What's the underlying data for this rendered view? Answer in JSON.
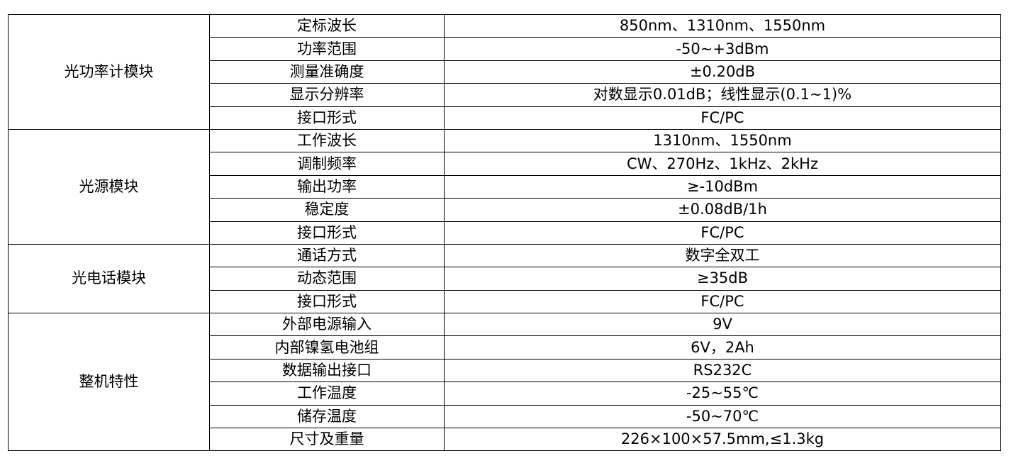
{
  "spec_table": {
    "groups": [
      {
        "module": "光功率计模块",
        "rows": [
          {
            "param": "定标波长",
            "value": "850nm、1310nm、1550nm"
          },
          {
            "param": "功率范围",
            "value": "-50~+3dBm"
          },
          {
            "param": "测量准确度",
            "value": "±0.20dB"
          },
          {
            "param": "显示分辨率",
            "value": "对数显示0.01dB；线性显示(0.1~1)%"
          },
          {
            "param": "接口形式",
            "value": "FC/PC"
          }
        ]
      },
      {
        "module": "光源模块",
        "rows": [
          {
            "param": "工作波长",
            "value": "1310nm、1550nm"
          },
          {
            "param": "调制频率",
            "value": "CW、270Hz、1kHz、2kHz"
          },
          {
            "param": "输出功率",
            "value": "≥-10dBm"
          },
          {
            "param": "稳定度",
            "value": "±0.08dB/1h"
          },
          {
            "param": "接口形式",
            "value": "FC/PC"
          }
        ]
      },
      {
        "module": "光电话模块",
        "rows": [
          {
            "param": "通话方式",
            "value": "数字全双工"
          },
          {
            "param": "动态范围",
            "value": "≥35dB"
          },
          {
            "param": "接口形式",
            "value": "FC/PC"
          }
        ]
      },
      {
        "module": "整机特性",
        "rows": [
          {
            "param": "外部电源输入",
            "value": "9V"
          },
          {
            "param": "内部镍氢电池组",
            "value": "6V，2Ah"
          },
          {
            "param": "数据输出接口",
            "value": "RS232C"
          },
          {
            "param": "工作温度",
            "value": "-25~55℃"
          },
          {
            "param": "储存温度",
            "value": "-50~70℃"
          },
          {
            "param": "尺寸及重量",
            "value": "226×100×57.5mm,≤1.3kg"
          }
        ]
      }
    ]
  }
}
